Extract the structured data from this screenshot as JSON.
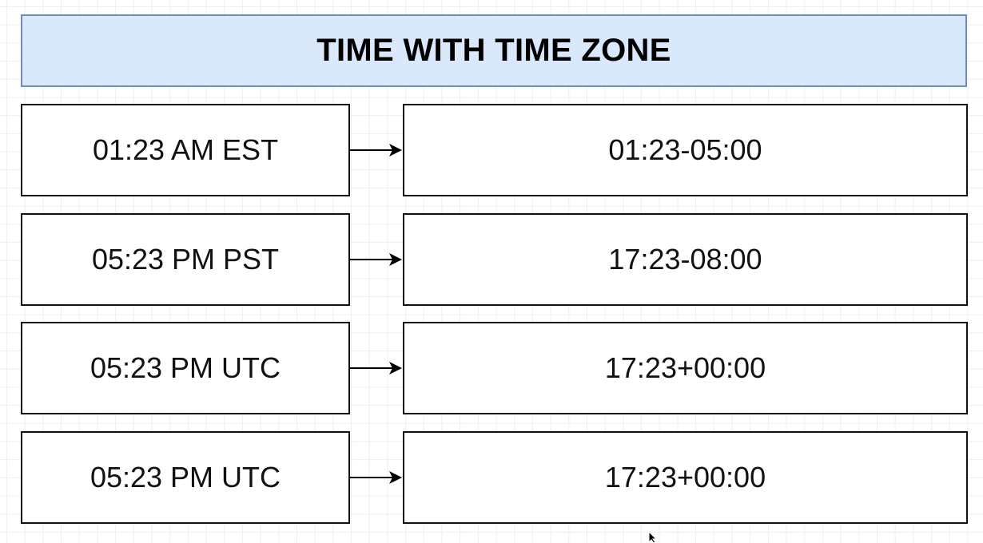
{
  "title": "TIME WITH TIME ZONE",
  "colors": {
    "title_fill": "#dae8fc",
    "title_border": "#6c8ebf",
    "box_border": "#111111"
  },
  "rows": [
    {
      "input": "01:23 AM EST",
      "output": "01:23-05:00"
    },
    {
      "input": "05:23 PM PST",
      "output": "17:23-08:00"
    },
    {
      "input": "05:23 PM UTC",
      "output": "17:23+00:00"
    },
    {
      "input": "05:23 PM UTC",
      "output": "17:23+00:00"
    }
  ],
  "icons": {
    "arrow": "right-arrow-icon",
    "cursor": "mouse-pointer-icon"
  }
}
